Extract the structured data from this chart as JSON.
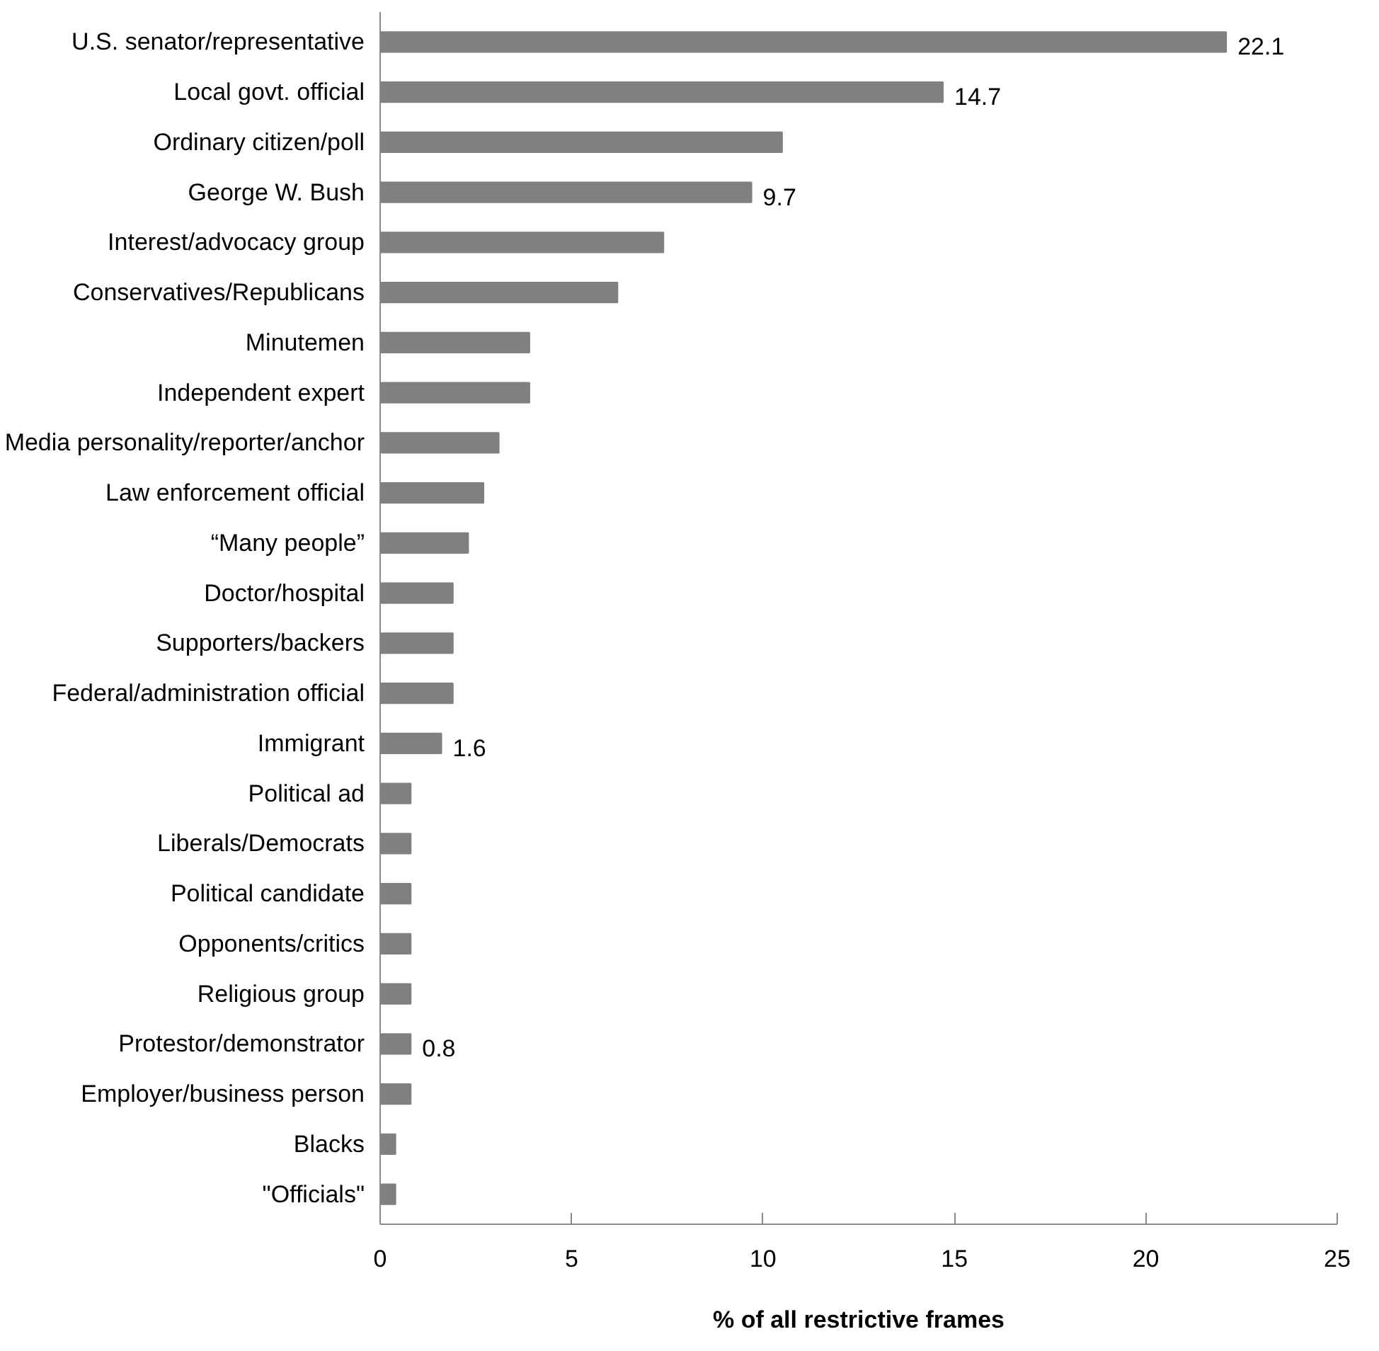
{
  "chart_data": {
    "type": "bar",
    "orientation": "horizontal",
    "xlabel": "% of all restrictive frames",
    "categories": [
      "U.S. senator/representative",
      "Local govt. official",
      "Ordinary citizen/poll",
      "George W. Bush",
      "Interest/advocacy group",
      "Conservatives/Republicans",
      "Minutemen",
      "Independent expert",
      "Media personality/reporter/anchor",
      "Law enforcement official",
      "“Many people”",
      "Doctor/hospital",
      "Supporters/backers",
      "Federal/administration official",
      "Immigrant",
      "Political ad",
      "Liberals/Democrats",
      "Political candidate",
      "Opponents/critics",
      "Religious group",
      "Protestor/demonstrator",
      "Employer/business person",
      "Blacks",
      "\"Officials\""
    ],
    "values": [
      22.1,
      14.7,
      10.5,
      9.7,
      7.4,
      6.2,
      3.9,
      3.9,
      3.1,
      2.7,
      2.3,
      1.9,
      1.9,
      1.9,
      1.6,
      0.8,
      0.8,
      0.8,
      0.8,
      0.8,
      0.8,
      0.8,
      0.4,
      0.4
    ],
    "value_labels": [
      "22.1",
      "14.7",
      null,
      "9.7",
      null,
      null,
      null,
      null,
      null,
      null,
      null,
      null,
      null,
      null,
      "1.6",
      null,
      null,
      null,
      null,
      null,
      "0.8",
      null,
      null,
      null
    ],
    "color": "#808080",
    "xlim": [
      0,
      25
    ],
    "xticks": [
      0,
      5,
      10,
      15,
      20,
      25
    ],
    "grid": false
  }
}
